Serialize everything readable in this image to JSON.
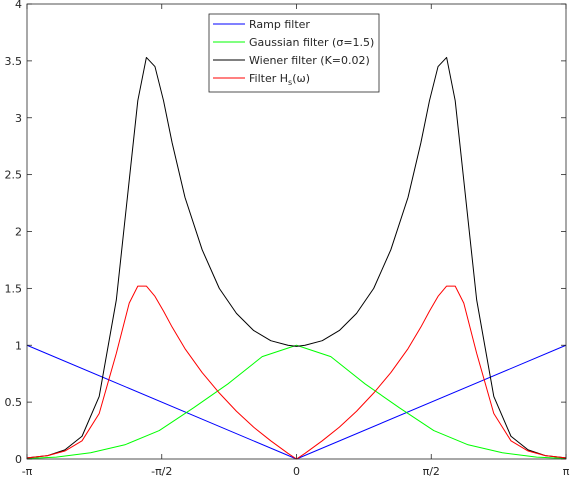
{
  "chart_data": {
    "type": "line",
    "title": "",
    "xlabel": "",
    "ylabel": "",
    "xlim": [
      -3.14159,
      3.14159
    ],
    "ylim": [
      0,
      4
    ],
    "x_ticks": [
      {
        "value": -3.14159,
        "label": "-π"
      },
      {
        "value": -1.5708,
        "label": "-π/2"
      },
      {
        "value": 0,
        "label": "0"
      },
      {
        "value": 1.5708,
        "label": "π/2"
      },
      {
        "value": 3.14159,
        "label": "π"
      }
    ],
    "y_ticks": [
      {
        "value": 0,
        "label": "0"
      },
      {
        "value": 0.5,
        "label": "0.5"
      },
      {
        "value": 1,
        "label": "1"
      },
      {
        "value": 1.5,
        "label": "1.5"
      },
      {
        "value": 2,
        "label": "2"
      },
      {
        "value": 2.5,
        "label": "2.5"
      },
      {
        "value": 3,
        "label": "3"
      },
      {
        "value": 3.5,
        "label": "3.5"
      },
      {
        "value": 4,
        "label": "4"
      }
    ],
    "grid": false,
    "legend_position": "top-center",
    "series": [
      {
        "name": "Ramp filter",
        "color": "#0000ff",
        "x": [
          -3.14159,
          0,
          3.14159
        ],
        "y": [
          1.0,
          0.0,
          1.0
        ]
      },
      {
        "name": "Gaussian filter (σ=1.5)",
        "color": "#00ff00",
        "x": [
          -3.14,
          -2.8,
          -2.4,
          -2.0,
          -1.6,
          -1.2,
          -0.8,
          -0.4,
          0,
          0.4,
          0.8,
          1.2,
          1.6,
          2.0,
          2.4,
          2.8,
          3.14
        ],
        "y": [
          0.004,
          0.017,
          0.055,
          0.125,
          0.25,
          0.45,
          0.66,
          0.9,
          1.0,
          0.9,
          0.66,
          0.45,
          0.25,
          0.125,
          0.055,
          0.017,
          0.004
        ]
      },
      {
        "name": "Wiener filter (K=0.02)",
        "color": "#000000",
        "x": [
          -3.14,
          -2.9,
          -2.7,
          -2.5,
          -2.3,
          -2.1,
          -1.95,
          -1.85,
          -1.75,
          -1.65,
          -1.55,
          -1.45,
          -1.3,
          -1.1,
          -0.9,
          -0.7,
          -0.5,
          -0.3,
          -0.1,
          0,
          0.1,
          0.3,
          0.5,
          0.7,
          0.9,
          1.1,
          1.3,
          1.45,
          1.55,
          1.65,
          1.75,
          1.85,
          1.95,
          2.1,
          2.3,
          2.5,
          2.7,
          2.9,
          3.14
        ],
        "y": [
          0.01,
          0.03,
          0.08,
          0.2,
          0.55,
          1.4,
          2.45,
          3.15,
          3.53,
          3.45,
          3.15,
          2.78,
          2.3,
          1.84,
          1.5,
          1.28,
          1.13,
          1.04,
          1.0,
          0.99,
          1.0,
          1.04,
          1.13,
          1.28,
          1.5,
          1.84,
          2.3,
          2.78,
          3.15,
          3.45,
          3.53,
          3.15,
          2.45,
          1.4,
          0.55,
          0.2,
          0.08,
          0.03,
          0.01
        ]
      },
      {
        "name": "Filter H_s(ω)",
        "color": "#ff0000",
        "x": [
          -3.14,
          -2.9,
          -2.7,
          -2.5,
          -2.3,
          -2.1,
          -1.95,
          -1.85,
          -1.75,
          -1.65,
          -1.55,
          -1.45,
          -1.3,
          -1.1,
          -0.9,
          -0.7,
          -0.5,
          -0.3,
          -0.1,
          0,
          0.1,
          0.3,
          0.5,
          0.7,
          0.9,
          1.1,
          1.3,
          1.45,
          1.55,
          1.65,
          1.75,
          1.85,
          1.95,
          2.1,
          2.3,
          2.5,
          2.7,
          2.9,
          3.14
        ],
        "y": [
          0.01,
          0.03,
          0.07,
          0.16,
          0.4,
          0.93,
          1.37,
          1.52,
          1.52,
          1.43,
          1.3,
          1.16,
          0.97,
          0.76,
          0.58,
          0.42,
          0.28,
          0.16,
          0.05,
          0.0,
          0.05,
          0.16,
          0.28,
          0.42,
          0.58,
          0.76,
          0.97,
          1.16,
          1.3,
          1.43,
          1.52,
          1.52,
          1.37,
          0.93,
          0.4,
          0.16,
          0.07,
          0.03,
          0.01
        ]
      }
    ],
    "legend_entries": [
      {
        "label_main": "Ramp filter",
        "label_sub": "",
        "label_tail": "",
        "color": "#0000ff"
      },
      {
        "label_main": "Gaussian filter (",
        "label_sub": "",
        "label_tail": "σ=1.5)",
        "color": "#00ff00"
      },
      {
        "label_main": "Wiener filter (K=0.02)",
        "label_sub": "",
        "label_tail": "",
        "color": "#000000"
      },
      {
        "label_main": "Filter H",
        "label_sub": "s",
        "label_tail": "(ω)",
        "color": "#ff0000"
      }
    ]
  }
}
